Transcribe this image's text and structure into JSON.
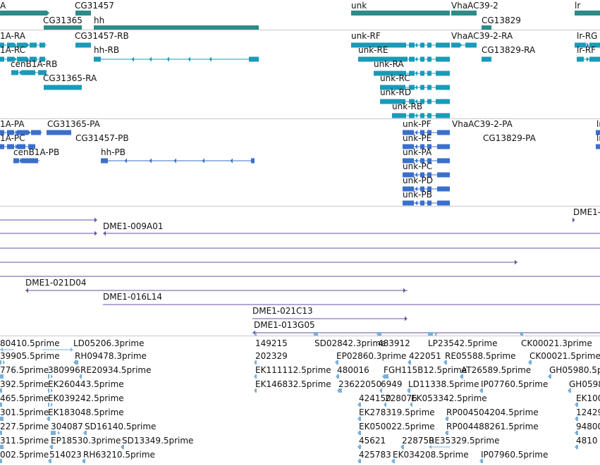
{
  "colors": {
    "gene": "#2e8b88",
    "mrna": "#1a9ab8",
    "cds": "#3a6fcc",
    "clone": "#6a4fa6",
    "est": "#7ab0da",
    "divider": "#c8c8c8"
  },
  "tracks": {
    "gene": {
      "labels": [
        "A",
        "CG31457",
        "CG31365",
        "hh",
        "unk",
        "VhaAC39-2",
        "CG13829",
        "lr"
      ]
    },
    "mrna": {
      "labels": [
        "1A-RA",
        "CG31457-RB",
        "1A-RC",
        "hh-RB",
        "cenB1A-RB",
        "CG31365-RA",
        "unk-RF",
        "VhaAC39-2-RA",
        "lr-RG",
        "unk-RE",
        "CG13829-RA",
        "lr-RF",
        "unk-RA",
        "unk-RC",
        "unk-RD",
        "unk-RB"
      ]
    },
    "cds": {
      "labels": [
        "1A-PA",
        "CG31365-PA",
        "1A-PC",
        "CG31457-PB",
        "cenB1A-PB",
        "hh-PB",
        "unk-PF",
        "VhaAC39-2-PA",
        "unk-PE",
        "CG13829-PA",
        "unk-PA",
        "unk-PC",
        "unk-PD",
        "unk-PB",
        "lr",
        "lr"
      ]
    },
    "clones": {
      "labels": [
        "DME1-009A01",
        "DME1-021D04",
        "DME1-016L14",
        "DME1-021C13",
        "DME1-013G05",
        "DME1-"
      ]
    },
    "ests": {
      "labels": [
        "80410.5prime",
        "LD05206.3prime",
        "149215",
        "SD02842.3prime",
        "483912",
        "LP23542.5prime",
        "CK00021.3prime",
        "39905.5prime",
        "RH09478.3prime",
        "202329",
        "EP02860.3prime",
        "422051",
        "RE05588.5prime",
        "CK00021.5prime",
        "776.5prime",
        "380996",
        "RE20934.5prime",
        "EK111112.5prime",
        "480016",
        "FGH115B12.5prime",
        "AT26589.5prime",
        "GH05980.5pr",
        "392.5prime",
        "EK260443.5prime",
        "EK146832.5prime",
        "23622050",
        "6949",
        "LD11338.5prime",
        "IP07760.5prime",
        "GH0598",
        "465.5prime",
        "EK039242.5prime",
        "424150",
        "228076",
        "EK053342.5prime",
        "EK100",
        "301.5prime",
        "EK183048.5prime",
        "EK278319.5prime",
        "RP004504204.5prime",
        "12429",
        "227.5prime",
        "304087",
        "SD16140.5prime",
        "EK050022.5prime",
        "RP004488261.5prime",
        "94800",
        "311.5prime",
        "EP18530.3prime",
        "SD13349.5prime",
        "45621",
        "228750",
        "RE35329.5prime",
        "4810",
        "002.5prime",
        "514023",
        "RH63210.5prime",
        "425783",
        "EK034208.5prime",
        "IP07960.5prime"
      ]
    }
  }
}
